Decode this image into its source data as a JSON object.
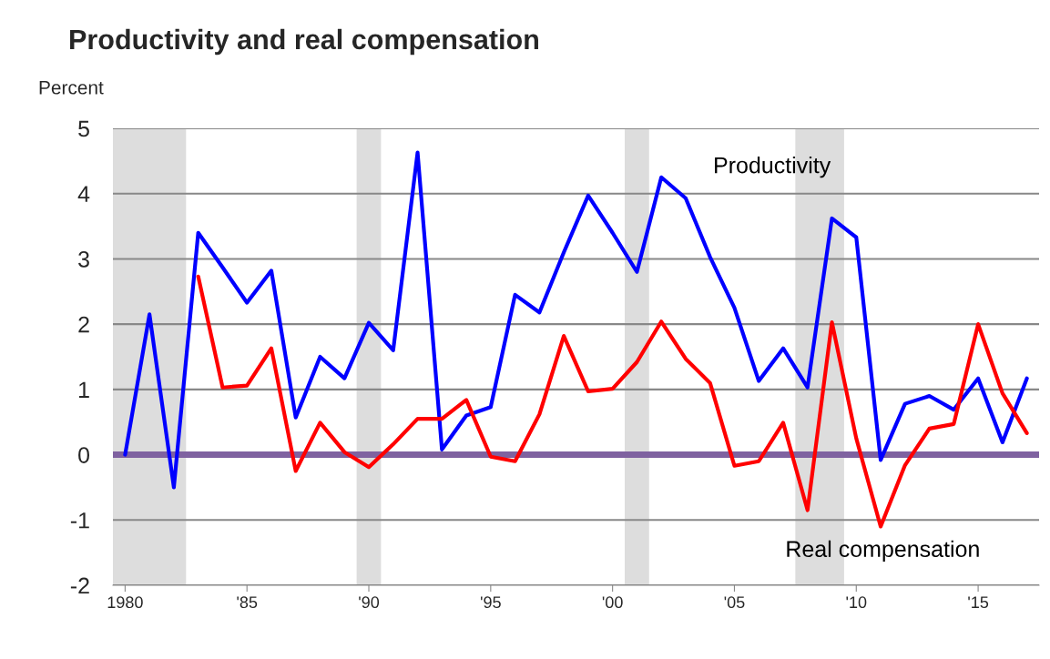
{
  "chart_data": {
    "type": "line",
    "title": "Productivity and real compensation",
    "ylabel": "Percent",
    "xlim": [
      1979.5,
      2017.5
    ],
    "xticks": [
      {
        "value": 1980,
        "label": "1980"
      },
      {
        "value": 1985,
        "label": "'85"
      },
      {
        "value": 1990,
        "label": "'90"
      },
      {
        "value": 1995,
        "label": "'95"
      },
      {
        "value": 2000,
        "label": "'00"
      },
      {
        "value": 2005,
        "label": "'05"
      },
      {
        "value": 2010,
        "label": "'10"
      },
      {
        "value": 2015,
        "label": "'15"
      }
    ],
    "ylim": [
      -2,
      5
    ],
    "yticks": [
      -2,
      -1,
      0,
      1,
      2,
      3,
      4,
      5
    ],
    "grid": "y",
    "legend": false,
    "line_style": "solid",
    "marker": "none",
    "series": [
      {
        "name": "Productivity",
        "color": "#0000ff",
        "x": [
          1980,
          1981,
          1982,
          1983,
          1984,
          1985,
          1986,
          1987,
          1988,
          1989,
          1990,
          1991,
          1992,
          1993,
          1994,
          1995,
          1996,
          1997,
          1998,
          1999,
          2000,
          2001,
          2002,
          2003,
          2004,
          2005,
          2006,
          2007,
          2008,
          2009,
          2010,
          2011,
          2012,
          2013,
          2014,
          2015,
          2016,
          2017
        ],
        "values": [
          0,
          2.15,
          -0.5,
          3.4,
          2.87,
          2.33,
          2.82,
          0.57,
          1.5,
          1.17,
          2.02,
          1.6,
          4.63,
          0.08,
          0.6,
          0.73,
          2.45,
          2.18,
          3.1,
          3.97,
          3.4,
          2.8,
          4.25,
          3.93,
          3.03,
          2.25,
          1.13,
          1.63,
          1.03,
          3.62,
          3.33,
          -0.08,
          0.78,
          0.9,
          0.69,
          1.17,
          0.19,
          1.17
        ]
      },
      {
        "name": "Real compensation",
        "color": "#ff0000",
        "x": [
          1983,
          1984,
          1985,
          1986,
          1987,
          1988,
          1989,
          1990,
          1991,
          1992,
          1993,
          1994,
          1995,
          1996,
          1997,
          1998,
          1999,
          2000,
          2001,
          2002,
          2003,
          2004,
          2005,
          2006,
          2007,
          2008,
          2009,
          2010,
          2011,
          2012,
          2013,
          2014,
          2015,
          2016,
          2017
        ],
        "values": [
          2.73,
          1.03,
          1.06,
          1.63,
          -0.25,
          0.49,
          0.04,
          -0.19,
          0.16,
          0.55,
          0.55,
          0.84,
          -0.03,
          -0.1,
          0.62,
          1.82,
          0.97,
          1.01,
          1.42,
          2.04,
          1.47,
          1.1,
          -0.17,
          -0.1,
          0.49,
          -0.85,
          2.03,
          0.25,
          -1.1,
          -0.16,
          0.4,
          0.47,
          2.0,
          0.94,
          0.33
        ]
      }
    ],
    "ref_lines": [
      {
        "axis": "y",
        "value": 0,
        "color": "#7f62a0"
      }
    ],
    "bands": [
      {
        "axis": "x",
        "from": 1979.5,
        "to": 1982.5,
        "color": "#dddddd"
      },
      {
        "axis": "x",
        "from": 1989.5,
        "to": 1990.5,
        "color": "#dddddd"
      },
      {
        "axis": "x",
        "from": 2000.5,
        "to": 2001.5,
        "color": "#dddddd"
      },
      {
        "axis": "x",
        "from": 2007.5,
        "to": 2009.5,
        "color": "#dddddd"
      }
    ]
  }
}
